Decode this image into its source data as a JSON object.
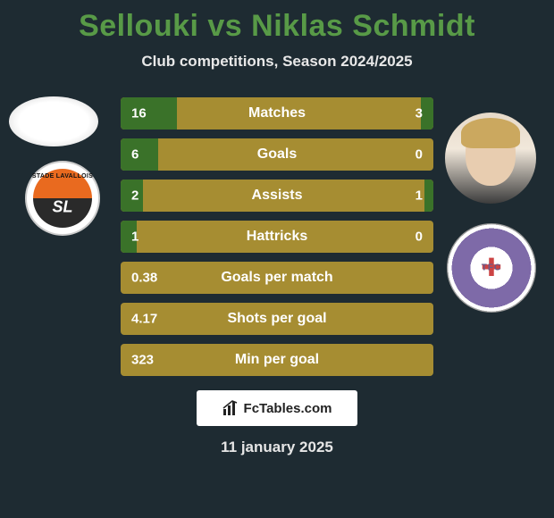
{
  "title": "Sellouki vs Niklas Schmidt",
  "subtitle": "Club competitions, Season 2024/2025",
  "date": "11 january 2025",
  "fctables_label": "FcTables.com",
  "colors": {
    "background": "#1e2b32",
    "title": "#589a47",
    "bar_track": "#a68d32",
    "bar_fill": "#3a7229",
    "text": "#ffffff"
  },
  "player_left": {
    "name": "Sellouki",
    "club": "Stade Lavallois"
  },
  "player_right": {
    "name": "Niklas Schmidt",
    "club": "Toulouse FC"
  },
  "stats": [
    {
      "label": "Matches",
      "left_val": "16",
      "right_val": "3",
      "left_pct": 18,
      "right_pct": 4
    },
    {
      "label": "Goals",
      "left_val": "6",
      "right_val": "0",
      "left_pct": 12,
      "right_pct": 0
    },
    {
      "label": "Assists",
      "left_val": "2",
      "right_val": "1",
      "left_pct": 7,
      "right_pct": 3
    },
    {
      "label": "Hattricks",
      "left_val": "1",
      "right_val": "0",
      "left_pct": 5,
      "right_pct": 0
    },
    {
      "label": "Goals per match",
      "left_val": "0.38",
      "right_val": "",
      "left_pct": 0,
      "right_pct": 0
    },
    {
      "label": "Shots per goal",
      "left_val": "4.17",
      "right_val": "",
      "left_pct": 0,
      "right_pct": 0
    },
    {
      "label": "Min per goal",
      "left_val": "323",
      "right_val": "",
      "left_pct": 0,
      "right_pct": 0
    }
  ]
}
